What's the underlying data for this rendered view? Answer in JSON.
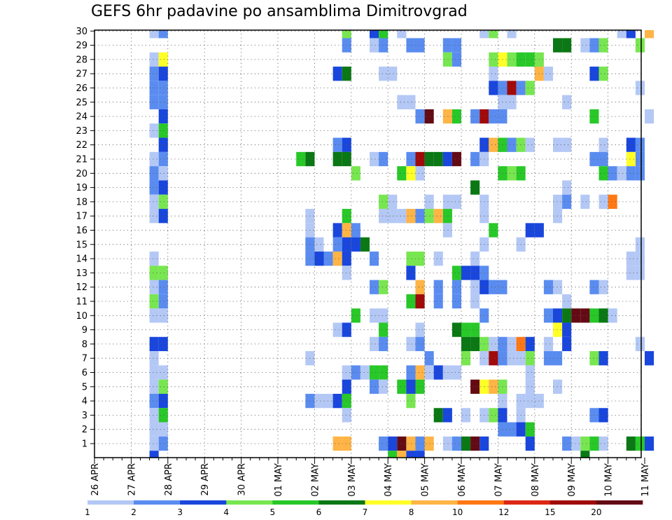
{
  "page": {
    "title": "GEFS 6hr padavine po ansamblima Dimitrovgrad"
  },
  "chart_data": {
    "type": "heatmap",
    "title": "GEFS 6hr padavine po ansamblima Dimitrovgrad",
    "xlabel": "",
    "ylabel": "",
    "x_tick_labels": [
      "26 APR",
      "27 APR",
      "28 APR",
      "29 APR",
      "30 APR",
      "01 MAY",
      "02 MAY",
      "03 MAY",
      "04 MAY",
      "05 MAY",
      "06 MAY",
      "07 MAY",
      "08 MAY",
      "09 MAY",
      "10 MAY",
      "11 MAY"
    ],
    "x_steps": 60,
    "step_hours": 6,
    "y_members": [
      1,
      2,
      3,
      4,
      5,
      6,
      7,
      8,
      9,
      10,
      11,
      12,
      13,
      14,
      15,
      16,
      17,
      18,
      19,
      20,
      21,
      22,
      23,
      24,
      25,
      26,
      27,
      28,
      29,
      30
    ],
    "grid": "dotted",
    "color_levels": [
      1,
      2,
      3,
      4,
      5,
      6,
      7,
      8,
      10,
      12,
      15,
      20
    ],
    "color_bar_labels": [
      "1",
      "2",
      "3",
      "4",
      "5",
      "6",
      "7",
      "8",
      "10",
      "12",
      "15",
      "20"
    ],
    "colors": [
      "#b4c8f5",
      "#5a8cf0",
      "#1946dc",
      "#78e650",
      "#28c828",
      "#0a7814",
      "#ffff28",
      "#ffb446",
      "#ff7814",
      "#dc2814",
      "#a00a0a",
      "#640a14"
    ],
    "cells": [
      [
        30,
        6,
        1
      ],
      [
        30,
        7,
        2
      ],
      [
        30,
        27,
        4
      ],
      [
        30,
        30,
        3
      ],
      [
        30,
        31,
        5
      ],
      [
        30,
        33,
        1
      ],
      [
        30,
        42,
        1
      ],
      [
        30,
        43,
        4
      ],
      [
        30,
        45,
        1
      ],
      [
        30,
        57,
        1
      ],
      [
        30,
        58,
        3
      ],
      [
        30,
        60,
        8
      ],
      [
        29,
        27,
        2
      ],
      [
        29,
        30,
        1
      ],
      [
        29,
        31,
        2
      ],
      [
        29,
        34,
        2
      ],
      [
        29,
        35,
        2
      ],
      [
        29,
        38,
        2
      ],
      [
        29,
        39,
        2
      ],
      [
        29,
        50,
        6
      ],
      [
        29,
        51,
        6
      ],
      [
        29,
        53,
        1
      ],
      [
        29,
        54,
        2
      ],
      [
        29,
        55,
        4
      ],
      [
        29,
        59,
        4
      ],
      [
        28,
        6,
        1
      ],
      [
        28,
        7,
        7
      ],
      [
        28,
        38,
        4
      ],
      [
        28,
        39,
        2
      ],
      [
        28,
        43,
        4
      ],
      [
        28,
        44,
        7
      ],
      [
        28,
        45,
        4
      ],
      [
        28,
        46,
        5
      ],
      [
        28,
        47,
        5
      ],
      [
        28,
        48,
        4
      ],
      [
        27,
        6,
        2
      ],
      [
        27,
        7,
        3
      ],
      [
        27,
        26,
        3
      ],
      [
        27,
        27,
        6
      ],
      [
        27,
        31,
        1
      ],
      [
        27,
        32,
        1
      ],
      [
        27,
        43,
        1
      ],
      [
        27,
        48,
        8
      ],
      [
        27,
        49,
        1
      ],
      [
        27,
        54,
        3
      ],
      [
        27,
        55,
        4
      ],
      [
        26,
        6,
        2
      ],
      [
        26,
        7,
        2
      ],
      [
        26,
        43,
        3
      ],
      [
        26,
        44,
        2
      ],
      [
        26,
        45,
        11
      ],
      [
        26,
        46,
        2
      ],
      [
        26,
        47,
        4
      ],
      [
        26,
        59,
        1
      ],
      [
        25,
        6,
        2
      ],
      [
        25,
        7,
        2
      ],
      [
        25,
        33,
        1
      ],
      [
        25,
        34,
        1
      ],
      [
        25,
        44,
        1
      ],
      [
        25,
        45,
        1
      ],
      [
        25,
        51,
        1
      ],
      [
        24,
        7,
        3
      ],
      [
        24,
        35,
        2
      ],
      [
        24,
        36,
        12
      ],
      [
        24,
        38,
        8
      ],
      [
        24,
        39,
        5
      ],
      [
        24,
        41,
        2
      ],
      [
        24,
        42,
        11
      ],
      [
        24,
        43,
        2
      ],
      [
        24,
        44,
        2
      ],
      [
        24,
        54,
        5
      ],
      [
        24,
        60,
        1
      ],
      [
        23,
        6,
        1
      ],
      [
        23,
        7,
        5
      ],
      [
        22,
        7,
        3
      ],
      [
        22,
        26,
        2
      ],
      [
        22,
        27,
        3
      ],
      [
        22,
        42,
        3
      ],
      [
        22,
        43,
        8
      ],
      [
        22,
        44,
        5
      ],
      [
        22,
        45,
        2
      ],
      [
        22,
        46,
        4
      ],
      [
        22,
        47,
        1
      ],
      [
        22,
        50,
        1
      ],
      [
        22,
        51,
        1
      ],
      [
        22,
        55,
        1
      ],
      [
        22,
        58,
        3
      ],
      [
        22,
        59,
        2
      ],
      [
        21,
        6,
        1
      ],
      [
        21,
        7,
        2
      ],
      [
        21,
        22,
        5
      ],
      [
        21,
        23,
        6
      ],
      [
        21,
        26,
        6
      ],
      [
        21,
        27,
        6
      ],
      [
        21,
        30,
        1
      ],
      [
        21,
        31,
        2
      ],
      [
        21,
        34,
        2
      ],
      [
        21,
        35,
        11
      ],
      [
        21,
        36,
        6
      ],
      [
        21,
        37,
        6
      ],
      [
        21,
        38,
        3
      ],
      [
        21,
        39,
        12
      ],
      [
        21,
        41,
        2
      ],
      [
        21,
        42,
        1
      ],
      [
        21,
        54,
        2
      ],
      [
        21,
        55,
        2
      ],
      [
        21,
        58,
        7
      ],
      [
        21,
        59,
        2
      ],
      [
        20,
        6,
        2
      ],
      [
        20,
        7,
        1
      ],
      [
        20,
        28,
        4
      ],
      [
        20,
        33,
        5
      ],
      [
        20,
        34,
        7
      ],
      [
        20,
        35,
        1
      ],
      [
        20,
        44,
        5
      ],
      [
        20,
        45,
        4
      ],
      [
        20,
        46,
        5
      ],
      [
        20,
        55,
        5
      ],
      [
        20,
        56,
        2
      ],
      [
        20,
        57,
        1
      ],
      [
        20,
        58,
        2
      ],
      [
        20,
        59,
        2
      ],
      [
        19,
        6,
        2
      ],
      [
        19,
        7,
        3
      ],
      [
        19,
        41,
        6
      ],
      [
        19,
        51,
        1
      ],
      [
        18,
        6,
        1
      ],
      [
        18,
        7,
        4
      ],
      [
        18,
        31,
        4
      ],
      [
        18,
        32,
        1
      ],
      [
        18,
        36,
        1
      ],
      [
        18,
        38,
        1
      ],
      [
        18,
        39,
        1
      ],
      [
        18,
        42,
        1
      ],
      [
        18,
        50,
        1
      ],
      [
        18,
        51,
        2
      ],
      [
        18,
        53,
        1
      ],
      [
        18,
        55,
        1
      ],
      [
        18,
        56,
        9
      ],
      [
        17,
        6,
        1
      ],
      [
        17,
        7,
        3
      ],
      [
        17,
        23,
        1
      ],
      [
        17,
        27,
        5
      ],
      [
        17,
        31,
        1
      ],
      [
        17,
        32,
        1
      ],
      [
        17,
        33,
        1
      ],
      [
        17,
        34,
        8
      ],
      [
        17,
        35,
        2
      ],
      [
        17,
        36,
        4
      ],
      [
        17,
        37,
        8
      ],
      [
        17,
        38,
        5
      ],
      [
        17,
        42,
        1
      ],
      [
        17,
        50,
        1
      ],
      [
        16,
        23,
        1
      ],
      [
        16,
        26,
        3
      ],
      [
        16,
        27,
        8
      ],
      [
        16,
        28,
        2
      ],
      [
        16,
        38,
        1
      ],
      [
        16,
        43,
        5
      ],
      [
        16,
        47,
        3
      ],
      [
        16,
        48,
        3
      ],
      [
        15,
        23,
        2
      ],
      [
        15,
        24,
        1
      ],
      [
        15,
        26,
        2
      ],
      [
        15,
        27,
        3
      ],
      [
        15,
        28,
        3
      ],
      [
        15,
        29,
        6
      ],
      [
        15,
        42,
        1
      ],
      [
        15,
        46,
        1
      ],
      [
        15,
        59,
        1
      ],
      [
        14,
        6,
        1
      ],
      [
        14,
        23,
        2
      ],
      [
        14,
        24,
        3
      ],
      [
        14,
        25,
        2
      ],
      [
        14,
        26,
        8
      ],
      [
        14,
        27,
        3
      ],
      [
        14,
        30,
        2
      ],
      [
        14,
        34,
        4
      ],
      [
        14,
        35,
        4
      ],
      [
        14,
        37,
        1
      ],
      [
        14,
        41,
        1
      ],
      [
        14,
        58,
        1
      ],
      [
        14,
        59,
        1
      ],
      [
        13,
        6,
        4
      ],
      [
        13,
        7,
        4
      ],
      [
        13,
        27,
        1
      ],
      [
        13,
        34,
        3
      ],
      [
        13,
        39,
        5
      ],
      [
        13,
        40,
        3
      ],
      [
        13,
        41,
        3
      ],
      [
        13,
        42,
        2
      ],
      [
        13,
        58,
        1
      ],
      [
        13,
        59,
        1
      ],
      [
        12,
        6,
        1
      ],
      [
        12,
        7,
        2
      ],
      [
        12,
        30,
        2
      ],
      [
        12,
        31,
        4
      ],
      [
        12,
        35,
        8
      ],
      [
        12,
        37,
        2
      ],
      [
        12,
        39,
        2
      ],
      [
        12,
        41,
        1
      ],
      [
        12,
        42,
        3
      ],
      [
        12,
        43,
        2
      ],
      [
        12,
        44,
        2
      ],
      [
        12,
        49,
        2
      ],
      [
        12,
        50,
        1
      ],
      [
        12,
        54,
        2
      ],
      [
        12,
        55,
        1
      ],
      [
        11,
        6,
        4
      ],
      [
        11,
        7,
        2
      ],
      [
        11,
        34,
        5
      ],
      [
        11,
        35,
        11
      ],
      [
        11,
        37,
        2
      ],
      [
        11,
        39,
        2
      ],
      [
        11,
        41,
        1
      ],
      [
        11,
        51,
        1
      ],
      [
        10,
        6,
        1
      ],
      [
        10,
        7,
        1
      ],
      [
        10,
        28,
        5
      ],
      [
        10,
        30,
        1
      ],
      [
        10,
        31,
        1
      ],
      [
        10,
        42,
        2
      ],
      [
        10,
        49,
        2
      ],
      [
        10,
        50,
        3
      ],
      [
        10,
        51,
        6
      ],
      [
        10,
        52,
        12
      ],
      [
        10,
        53,
        12
      ],
      [
        10,
        54,
        5
      ],
      [
        10,
        55,
        6
      ],
      [
        10,
        56,
        1
      ],
      [
        9,
        26,
        1
      ],
      [
        9,
        27,
        3
      ],
      [
        9,
        31,
        5
      ],
      [
        9,
        35,
        1
      ],
      [
        9,
        39,
        6
      ],
      [
        9,
        40,
        5
      ],
      [
        9,
        41,
        5
      ],
      [
        9,
        50,
        7
      ],
      [
        9,
        51,
        3
      ],
      [
        8,
        6,
        3
      ],
      [
        8,
        7,
        3
      ],
      [
        8,
        30,
        1
      ],
      [
        8,
        31,
        2
      ],
      [
        8,
        34,
        1
      ],
      [
        8,
        35,
        2
      ],
      [
        8,
        40,
        6
      ],
      [
        8,
        41,
        6
      ],
      [
        8,
        42,
        4
      ],
      [
        8,
        43,
        1
      ],
      [
        8,
        44,
        2
      ],
      [
        8,
        45,
        1
      ],
      [
        8,
        46,
        9
      ],
      [
        8,
        47,
        3
      ],
      [
        8,
        49,
        1
      ],
      [
        8,
        51,
        3
      ],
      [
        8,
        59,
        1
      ],
      [
        7,
        6,
        1
      ],
      [
        7,
        23,
        1
      ],
      [
        7,
        36,
        2
      ],
      [
        7,
        40,
        4
      ],
      [
        7,
        42,
        1
      ],
      [
        7,
        43,
        11
      ],
      [
        7,
        44,
        2
      ],
      [
        7,
        45,
        1
      ],
      [
        7,
        46,
        1
      ],
      [
        7,
        47,
        4
      ],
      [
        7,
        49,
        2
      ],
      [
        7,
        50,
        2
      ],
      [
        7,
        54,
        4
      ],
      [
        7,
        55,
        3
      ],
      [
        7,
        60,
        3
      ],
      [
        6,
        6,
        1
      ],
      [
        6,
        7,
        1
      ],
      [
        6,
        27,
        1
      ],
      [
        6,
        28,
        2
      ],
      [
        6,
        29,
        1
      ],
      [
        6,
        30,
        5
      ],
      [
        6,
        31,
        5
      ],
      [
        6,
        34,
        2
      ],
      [
        6,
        35,
        8
      ],
      [
        6,
        36,
        1
      ],
      [
        6,
        37,
        3
      ],
      [
        6,
        38,
        1
      ],
      [
        6,
        39,
        1
      ],
      [
        6,
        47,
        1
      ],
      [
        5,
        6,
        1
      ],
      [
        5,
        7,
        4
      ],
      [
        5,
        27,
        3
      ],
      [
        5,
        30,
        2
      ],
      [
        5,
        31,
        1
      ],
      [
        5,
        33,
        5
      ],
      [
        5,
        34,
        3
      ],
      [
        5,
        35,
        5
      ],
      [
        5,
        41,
        12
      ],
      [
        5,
        42,
        7
      ],
      [
        5,
        43,
        8
      ],
      [
        5,
        44,
        4
      ],
      [
        5,
        47,
        1
      ],
      [
        5,
        50,
        1
      ],
      [
        4,
        6,
        2
      ],
      [
        4,
        7,
        3
      ],
      [
        4,
        23,
        2
      ],
      [
        4,
        24,
        1
      ],
      [
        4,
        25,
        1
      ],
      [
        4,
        26,
        3
      ],
      [
        4,
        27,
        5
      ],
      [
        4,
        34,
        4
      ],
      [
        4,
        44,
        1
      ],
      [
        4,
        46,
        1
      ],
      [
        4,
        47,
        1
      ],
      [
        4,
        48,
        1
      ],
      [
        3,
        6,
        1
      ],
      [
        3,
        7,
        5
      ],
      [
        3,
        27,
        1
      ],
      [
        3,
        37,
        6
      ],
      [
        3,
        38,
        3
      ],
      [
        3,
        40,
        1
      ],
      [
        3,
        42,
        1
      ],
      [
        3,
        43,
        4
      ],
      [
        3,
        44,
        3
      ],
      [
        3,
        46,
        1
      ],
      [
        3,
        54,
        2
      ],
      [
        3,
        55,
        3
      ],
      [
        2,
        6,
        1
      ],
      [
        2,
        7,
        1
      ],
      [
        2,
        44,
        2
      ],
      [
        2,
        45,
        2
      ],
      [
        2,
        46,
        3
      ],
      [
        2,
        47,
        5
      ],
      [
        1,
        6,
        1
      ],
      [
        1,
        7,
        2
      ],
      [
        1,
        26,
        8
      ],
      [
        1,
        27,
        8
      ],
      [
        1,
        31,
        2
      ],
      [
        1,
        32,
        3
      ],
      [
        1,
        33,
        12
      ],
      [
        1,
        34,
        8
      ],
      [
        1,
        35,
        2
      ],
      [
        1,
        36,
        8
      ],
      [
        1,
        38,
        1
      ],
      [
        1,
        39,
        2
      ],
      [
        1,
        40,
        6
      ],
      [
        1,
        41,
        12
      ],
      [
        1,
        42,
        3
      ],
      [
        1,
        47,
        3
      ],
      [
        1,
        51,
        2
      ],
      [
        1,
        52,
        1
      ],
      [
        1,
        53,
        4
      ],
      [
        1,
        54,
        5
      ],
      [
        1,
        55,
        1
      ],
      [
        1,
        58,
        6
      ],
      [
        1,
        59,
        5
      ],
      [
        1,
        60,
        3
      ],
      [
        0,
        6,
        3
      ],
      [
        0,
        32,
        5
      ],
      [
        0,
        33,
        8
      ],
      [
        0,
        34,
        3
      ],
      [
        0,
        35,
        3
      ],
      [
        0,
        53,
        6
      ]
    ]
  }
}
